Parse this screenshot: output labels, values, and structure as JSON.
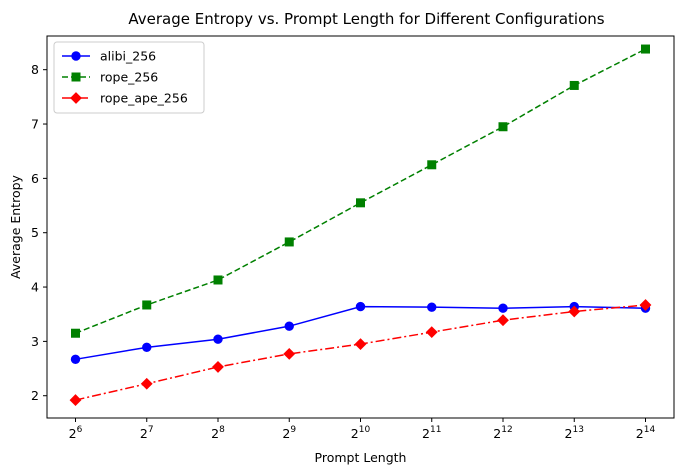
{
  "chart_data": {
    "type": "line",
    "title": "Average Entropy vs. Prompt Length for Different Configurations",
    "xlabel": "Prompt Length",
    "ylabel": "Average Entropy",
    "x_scale": "log2",
    "x": [
      64,
      128,
      256,
      512,
      1024,
      2048,
      4096,
      8192,
      16384
    ],
    "x_tick_labels": [
      {
        "base": "2",
        "exp": "6"
      },
      {
        "base": "2",
        "exp": "7"
      },
      {
        "base": "2",
        "exp": "8"
      },
      {
        "base": "2",
        "exp": "9"
      },
      {
        "base": "2",
        "exp": "10"
      },
      {
        "base": "2",
        "exp": "11"
      },
      {
        "base": "2",
        "exp": "12"
      },
      {
        "base": "2",
        "exp": "13"
      },
      {
        "base": "2",
        "exp": "14"
      }
    ],
    "ylim": [
      1.59,
      8.62
    ],
    "y_ticks": [
      2,
      3,
      4,
      5,
      6,
      7,
      8
    ],
    "grid": false,
    "legend_position": "upper-left",
    "series": [
      {
        "name": "alibi_256",
        "color": "#0000ff",
        "line_style": "solid",
        "marker": "circle",
        "values": [
          2.67,
          2.89,
          3.04,
          3.28,
          3.64,
          3.63,
          3.61,
          3.64,
          3.61
        ]
      },
      {
        "name": "rope_256",
        "color": "#008000",
        "line_style": "dashed",
        "marker": "square",
        "values": [
          3.15,
          3.67,
          4.13,
          4.83,
          5.55,
          6.25,
          6.95,
          7.71,
          8.38
        ]
      },
      {
        "name": "rope_ape_256",
        "color": "#ff0000",
        "line_style": "dashdot",
        "marker": "diamond",
        "values": [
          1.92,
          2.22,
          2.53,
          2.77,
          2.95,
          3.17,
          3.39,
          3.55,
          3.67
        ]
      }
    ]
  }
}
